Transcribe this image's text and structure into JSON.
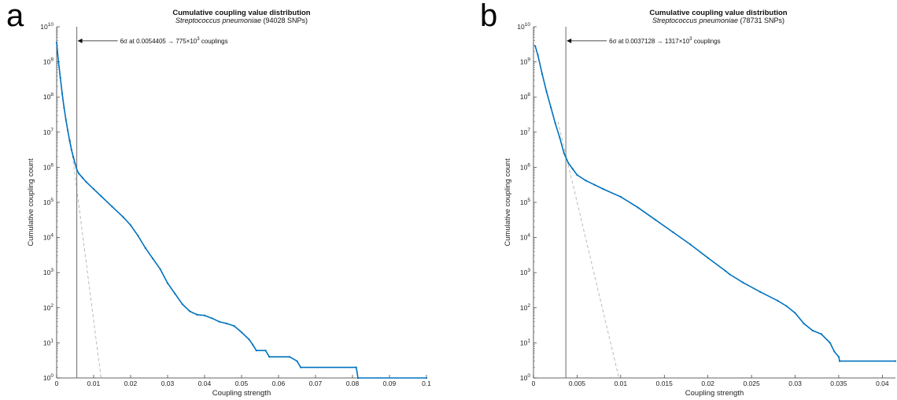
{
  "panels": [
    {
      "letter": "a",
      "chart_data": {
        "type": "line",
        "title": "Cumulative coupling value distribution",
        "subtitle_species": "Streptococcus pneumoniae",
        "subtitle_snps": "(94028 SNPs)",
        "xlabel": "Coupling strength",
        "ylabel": "Cumulative coupling count",
        "xlim": [
          0,
          0.1
        ],
        "ylim_log10": [
          0,
          10
        ],
        "yscale": "log",
        "grid": false,
        "x_ticks": [
          0,
          0.01,
          0.02,
          0.03,
          0.04,
          0.05,
          0.06,
          0.07,
          0.08,
          0.09,
          0.1
        ],
        "x_tick_labels": [
          "0",
          "0.01",
          "0.02",
          "0.03",
          "0.04",
          "0.05",
          "0.06",
          "0.07",
          "0.08",
          "0.09",
          "0.1"
        ],
        "y_tick_exponents": [
          0,
          1,
          2,
          3,
          4,
          5,
          6,
          7,
          8,
          9,
          10
        ],
        "threshold_x": 0.0054405,
        "annotation": {
          "prefix": "6σ at 0.0054405 → 775×10",
          "exp": "3",
          "suffix": " couplings"
        },
        "series": [
          {
            "color": "#0072BD",
            "points": [
              [
                0,
                9.55
              ],
              [
                0.0005,
                9.0
              ],
              [
                0.001,
                8.55
              ],
              [
                0.0015,
                8.1
              ],
              [
                0.002,
                7.7
              ],
              [
                0.0025,
                7.35
              ],
              [
                0.003,
                7.05
              ],
              [
                0.0035,
                6.75
              ],
              [
                0.004,
                6.5
              ],
              [
                0.0045,
                6.3
              ],
              [
                0.005,
                6.1
              ],
              [
                0.0055,
                5.92
              ],
              [
                0.006,
                5.82
              ],
              [
                0.007,
                5.7
              ],
              [
                0.008,
                5.58
              ],
              [
                0.01,
                5.38
              ],
              [
                0.012,
                5.18
              ],
              [
                0.015,
                4.88
              ],
              [
                0.018,
                4.58
              ],
              [
                0.02,
                4.35
              ],
              [
                0.022,
                4.05
              ],
              [
                0.024,
                3.7
              ],
              [
                0.026,
                3.4
              ],
              [
                0.028,
                3.1
              ],
              [
                0.03,
                2.7
              ],
              [
                0.032,
                2.4
              ],
              [
                0.034,
                2.1
              ],
              [
                0.036,
                1.9
              ],
              [
                0.038,
                1.8
              ],
              [
                0.04,
                1.78
              ],
              [
                0.042,
                1.7
              ],
              [
                0.044,
                1.6
              ],
              [
                0.046,
                1.55
              ],
              [
                0.048,
                1.48
              ],
              [
                0.05,
                1.3
              ],
              [
                0.052,
                1.1
              ],
              [
                0.053,
                0.95
              ],
              [
                0.054,
                0.78
              ],
              [
                0.0565,
                0.78
              ],
              [
                0.0575,
                0.6
              ],
              [
                0.063,
                0.6
              ],
              [
                0.065,
                0.48
              ],
              [
                0.066,
                0.3
              ],
              [
                0.081,
                0.3
              ],
              [
                0.0815,
                0.0
              ],
              [
                0.1,
                0.0
              ]
            ]
          }
        ],
        "fit_line": {
          "color": "#aaaaaa",
          "points": [
            [
              0.0037,
              6.8
            ],
            [
              0.012,
              0.0
            ]
          ]
        }
      }
    },
    {
      "letter": "b",
      "chart_data": {
        "type": "line",
        "title": "Cumulative coupling value distribution",
        "subtitle_species": "Streptococcus pneumoniae",
        "subtitle_snps": "(78731 SNPs)",
        "xlabel": "Coupling strength",
        "ylabel": "Cumulative coupling count",
        "xlim": [
          0,
          0.0415
        ],
        "ylim_log10": [
          0,
          10
        ],
        "yscale": "log",
        "grid": false,
        "x_ticks": [
          0,
          0.005,
          0.01,
          0.015,
          0.02,
          0.025,
          0.03,
          0.035,
          0.04
        ],
        "x_tick_labels": [
          "0",
          "0.005",
          "0.01",
          "0.015",
          "0.02",
          "0.025",
          "0.03",
          "0.035",
          "0.04"
        ],
        "y_tick_exponents": [
          0,
          1,
          2,
          3,
          4,
          5,
          6,
          7,
          8,
          9,
          10
        ],
        "threshold_x": 0.0037128,
        "annotation": {
          "prefix": "6σ at 0.0037128 → 1317×10",
          "exp": "3",
          "suffix": " couplings"
        },
        "series": [
          {
            "color": "#0072BD",
            "points": [
              [
                0.0002,
                9.45
              ],
              [
                0.0005,
                9.2
              ],
              [
                0.001,
                8.65
              ],
              [
                0.0015,
                8.15
              ],
              [
                0.002,
                7.7
              ],
              [
                0.0025,
                7.25
              ],
              [
                0.003,
                6.85
              ],
              [
                0.0035,
                6.4
              ],
              [
                0.004,
                6.12
              ],
              [
                0.0045,
                5.95
              ],
              [
                0.005,
                5.78
              ],
              [
                0.006,
                5.62
              ],
              [
                0.007,
                5.5
              ],
              [
                0.008,
                5.38
              ],
              [
                0.01,
                5.16
              ],
              [
                0.012,
                4.85
              ],
              [
                0.014,
                4.5
              ],
              [
                0.016,
                4.15
              ],
              [
                0.018,
                3.8
              ],
              [
                0.02,
                3.42
              ],
              [
                0.022,
                3.05
              ],
              [
                0.0225,
                2.95
              ],
              [
                0.024,
                2.72
              ],
              [
                0.026,
                2.45
              ],
              [
                0.028,
                2.2
              ],
              [
                0.029,
                2.05
              ],
              [
                0.03,
                1.85
              ],
              [
                0.031,
                1.55
              ],
              [
                0.032,
                1.35
              ],
              [
                0.033,
                1.25
              ],
              [
                0.034,
                1.0
              ],
              [
                0.0345,
                0.75
              ],
              [
                0.035,
                0.6
              ],
              [
                0.0351,
                0.48
              ],
              [
                0.0415,
                0.48
              ]
            ]
          }
        ],
        "fit_line": {
          "color": "#aaaaaa",
          "points": [
            [
              0.0028,
              7.3
            ],
            [
              0.0098,
              0.0
            ]
          ]
        }
      }
    }
  ]
}
